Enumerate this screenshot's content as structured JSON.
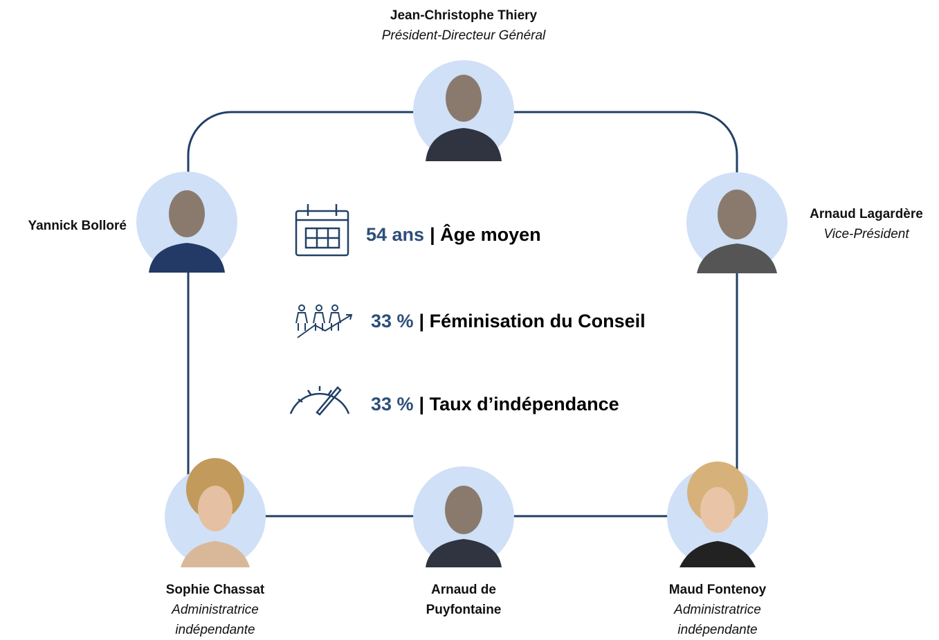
{
  "members": [
    {
      "name": [
        "Jean-Christophe Thiery"
      ],
      "role": [
        "Président-Directeur Général"
      ]
    },
    {
      "name": [
        "Yannick Bolloré"
      ]
    },
    {
      "name": [
        "Arnaud Lagardère"
      ],
      "role": [
        "Vice-Président"
      ]
    },
    {
      "name": [
        "Sophie Chassat"
      ],
      "role": [
        "Administratrice",
        "indépendante"
      ]
    },
    {
      "name": [
        "Arnaud de",
        "Puyfontaine"
      ]
    },
    {
      "name": [
        "Maud Fontenoy"
      ],
      "role": [
        "Administratrice",
        "indépendante"
      ]
    }
  ],
  "stats": [
    {
      "value": "54 ans",
      "label": "| Âge moyen"
    },
    {
      "value": "33 %",
      "label": "| Féminisation du Conseil"
    },
    {
      "value": "33 %",
      "label": "| Taux d’indépendance"
    }
  ]
}
